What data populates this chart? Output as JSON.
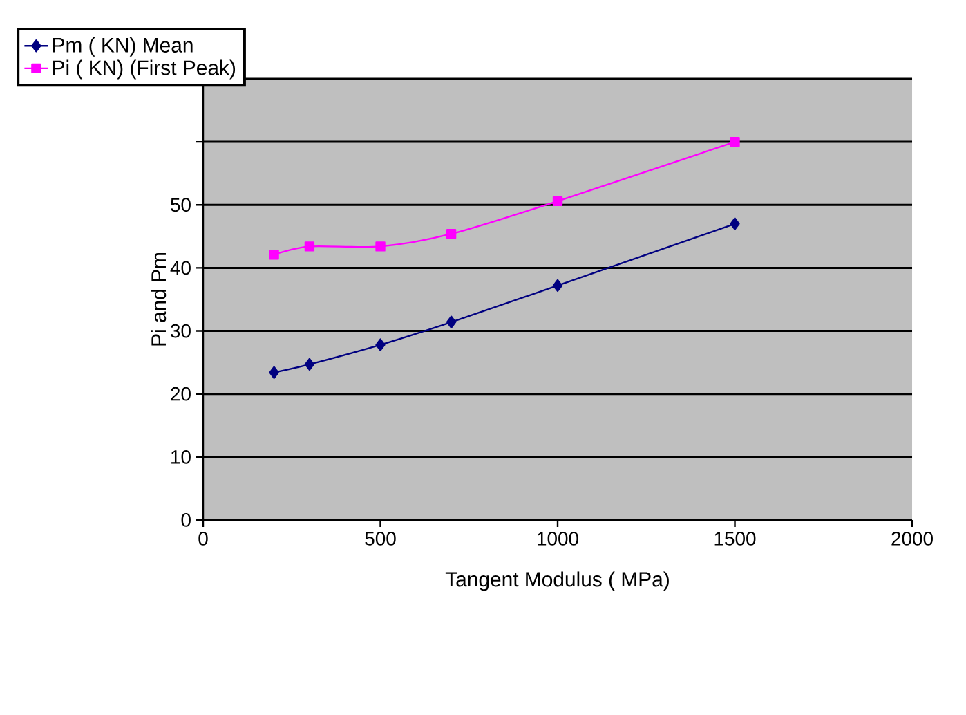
{
  "chart_data": {
    "type": "line",
    "xlabel": "Tangent Modulus ( MPa)",
    "ylabel": "Pi and Pm",
    "xlim": [
      0,
      2000
    ],
    "xticks": [
      0,
      500,
      1000,
      1500,
      2000
    ],
    "ylim": [
      0,
      70
    ],
    "yticks": [
      0,
      10,
      20,
      30,
      40,
      50,
      {
        "value": 60,
        "label": null
      },
      {
        "value": 70,
        "label": null
      }
    ],
    "grid": "y",
    "legend": "top left",
    "series": [
      {
        "name": "Pm ( KN) Mean",
        "color": "#000080",
        "marker": "diamond",
        "x": [
          200,
          300,
          500,
          700,
          1000,
          1500
        ],
        "values": [
          23.4,
          24.7,
          27.8,
          31.4,
          37.2,
          47
        ]
      },
      {
        "name": "Pi ( KN) (First Peak)",
        "color": "#ff00ff",
        "marker": "square",
        "x": [
          200,
          300,
          500,
          700,
          1000,
          1500
        ],
        "values": [
          42.1,
          43.4,
          43.4,
          45.4,
          50.6,
          60
        ]
      }
    ]
  }
}
